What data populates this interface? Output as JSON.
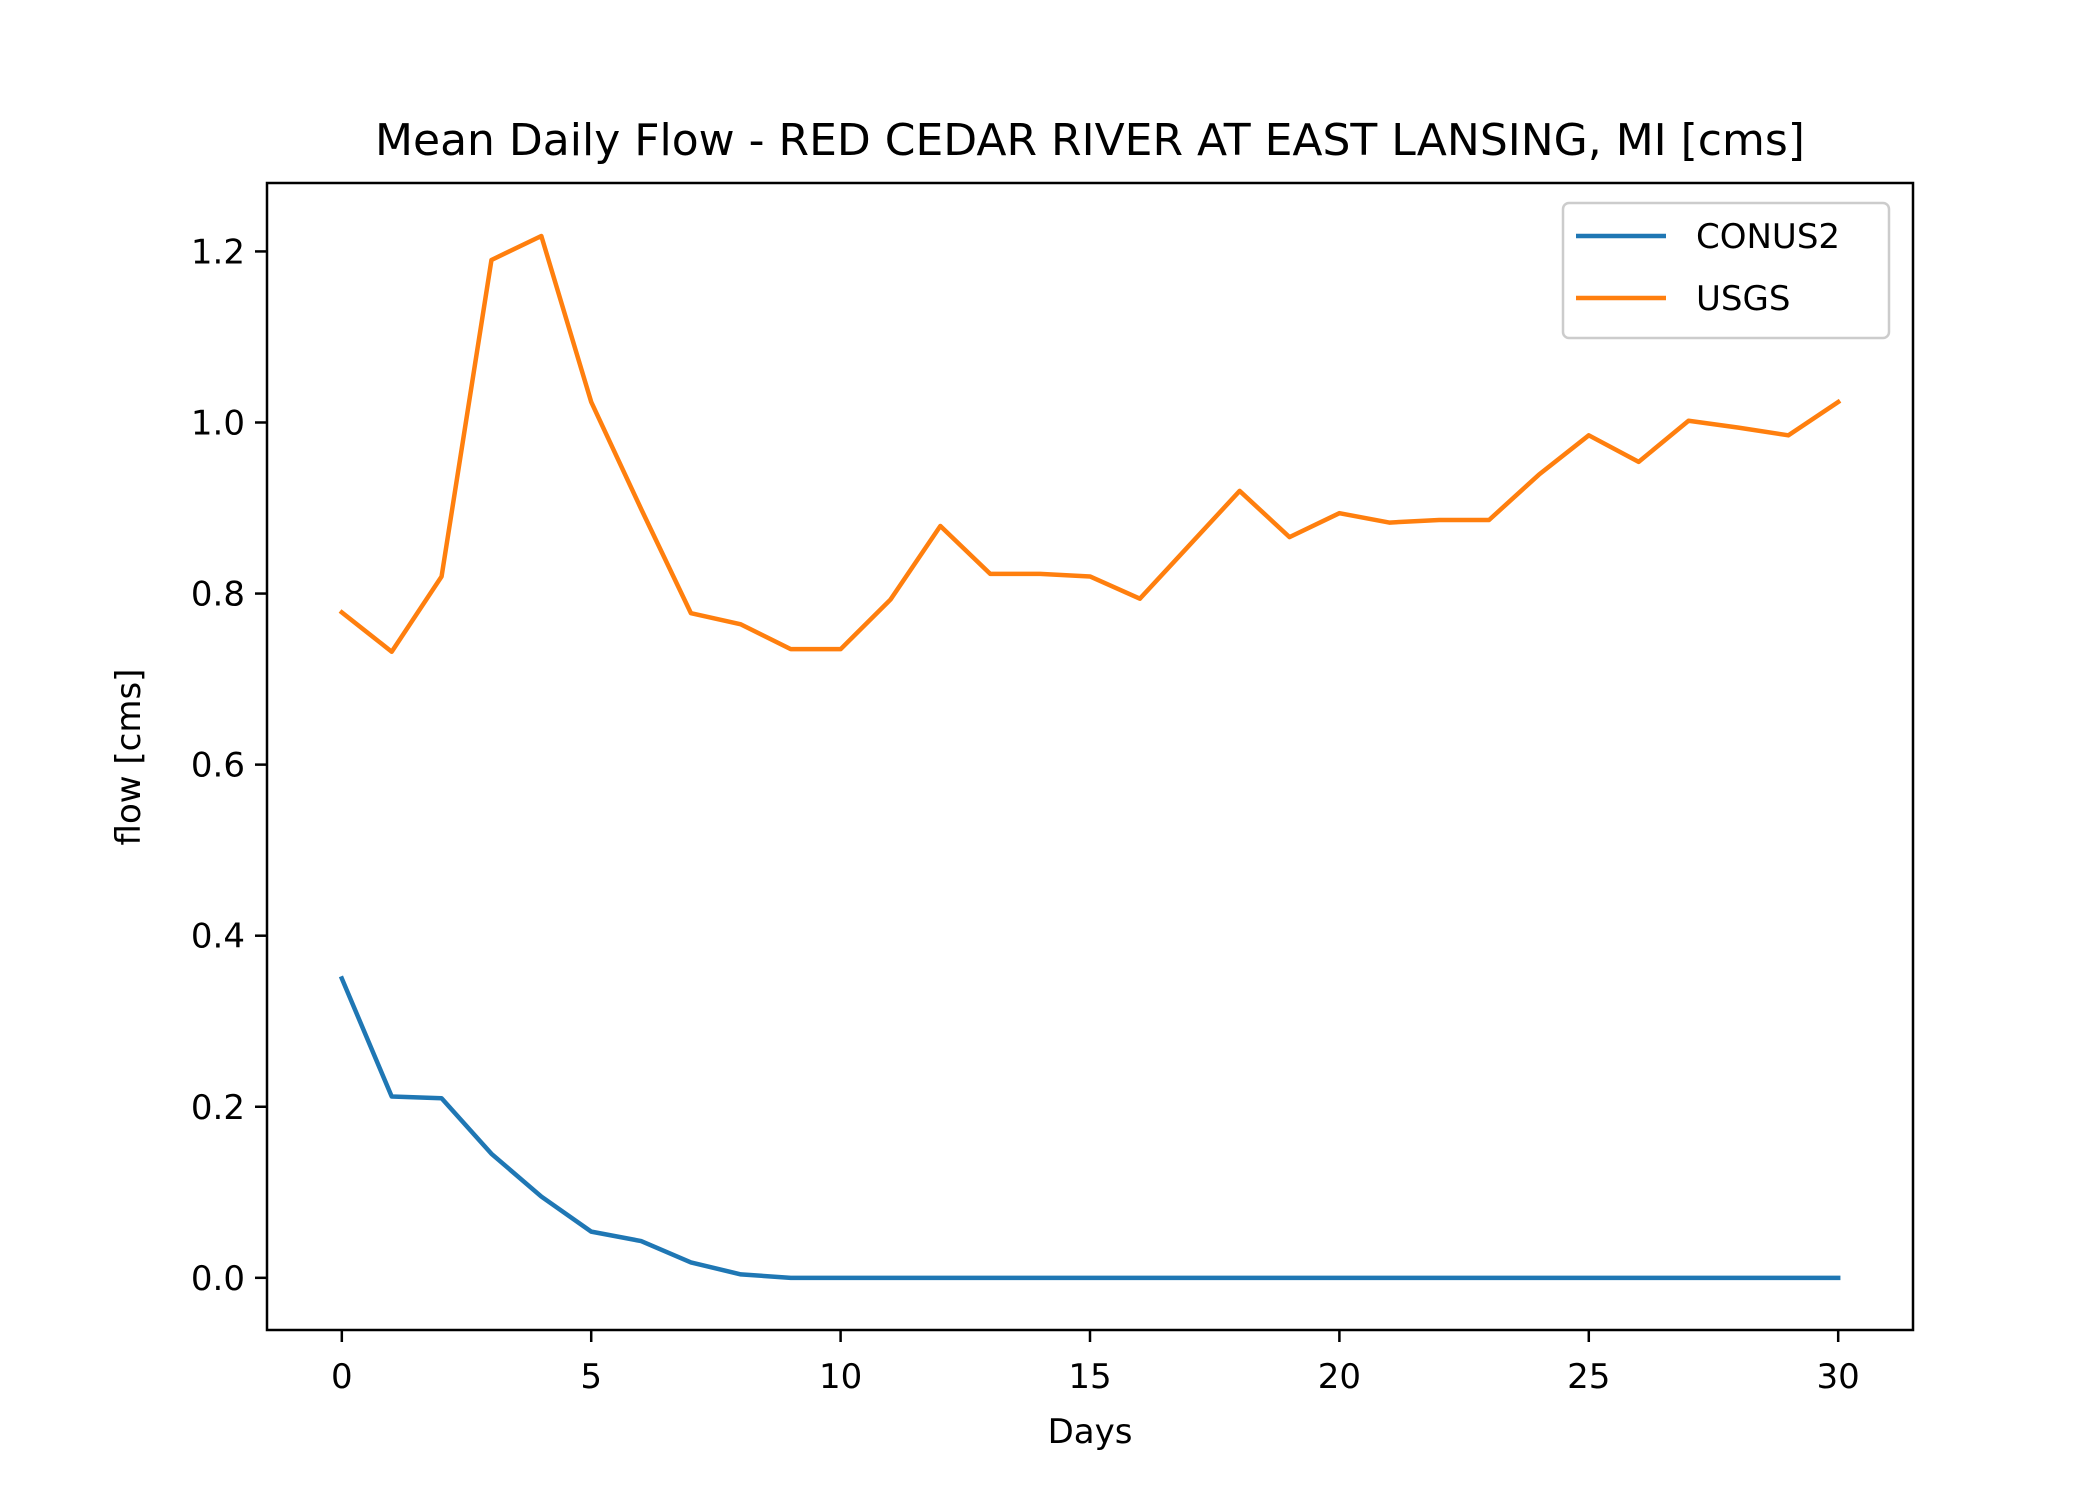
{
  "chart_data": {
    "type": "line",
    "title": "Mean Daily Flow - RED CEDAR RIVER AT EAST LANSING, MI [cms]",
    "xlabel": "Days",
    "ylabel": "flow [cms]",
    "xlim": [
      -1.5,
      31.5
    ],
    "ylim": [
      -0.061,
      1.28
    ],
    "xticks": [
      0,
      5,
      10,
      15,
      20,
      25,
      30
    ],
    "xtick_labels": [
      "0",
      "5",
      "10",
      "15",
      "20",
      "25",
      "30"
    ],
    "yticks": [
      0.0,
      0.2,
      0.4,
      0.6,
      0.8,
      1.0,
      1.2
    ],
    "ytick_labels": [
      "0.0",
      "0.2",
      "0.4",
      "0.6",
      "0.8",
      "1.0",
      "1.2"
    ],
    "grid": false,
    "legend_position": "top-right",
    "x": [
      0,
      1,
      2,
      3,
      4,
      5,
      6,
      7,
      8,
      9,
      10,
      11,
      12,
      13,
      14,
      15,
      16,
      17,
      18,
      19,
      20,
      21,
      22,
      23,
      24,
      25,
      26,
      27,
      28,
      29,
      30
    ],
    "series": [
      {
        "name": "CONUS2",
        "color": "#1f77b4",
        "values": [
          0.35,
          0.212,
          0.21,
          0.145,
          0.095,
          0.054,
          0.043,
          0.018,
          0.004,
          0.0,
          0.0,
          0.0,
          0.0,
          0.0,
          0.0,
          0.0,
          0.0,
          0.0,
          0.0,
          0.0,
          0.0,
          0.0,
          0.0,
          0.0,
          0.0,
          0.0,
          0.0,
          0.0,
          0.0,
          0.0,
          0.0
        ]
      },
      {
        "name": "USGS",
        "color": "#ff7f0e",
        "values": [
          0.778,
          0.732,
          0.82,
          1.19,
          1.218,
          1.024,
          0.899,
          0.777,
          0.764,
          0.735,
          0.735,
          0.793,
          0.879,
          0.823,
          0.823,
          0.82,
          0.794,
          0.857,
          0.92,
          0.866,
          0.894,
          0.883,
          0.886,
          0.886,
          0.939,
          0.985,
          0.954,
          1.002,
          0.994,
          0.985,
          1.024
        ]
      }
    ]
  }
}
